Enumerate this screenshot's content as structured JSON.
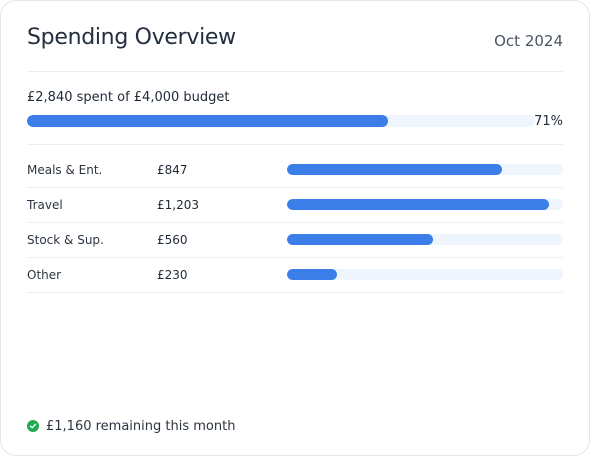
{
  "header": {
    "title": "Spending Overview",
    "period": "Oct 2024"
  },
  "budget": {
    "summary": "£2,840 spent of £4,000 budget",
    "percent_label": "71%",
    "fill_percent": 71
  },
  "categories": [
    {
      "name": "Meals & Ent.",
      "amount": "£847",
      "fill_percent": 78
    },
    {
      "name": "Travel",
      "amount": "£1,203",
      "fill_percent": 95
    },
    {
      "name": "Stock & Sup.",
      "amount": "£560",
      "fill_percent": 53
    },
    {
      "name": "Other",
      "amount": "£230",
      "fill_percent": 18
    }
  ],
  "footer": {
    "remaining": "£1,160 remaining this month"
  },
  "colors": {
    "accent": "#3b7ee8",
    "track": "#eef5fd",
    "success": "#22a952"
  }
}
